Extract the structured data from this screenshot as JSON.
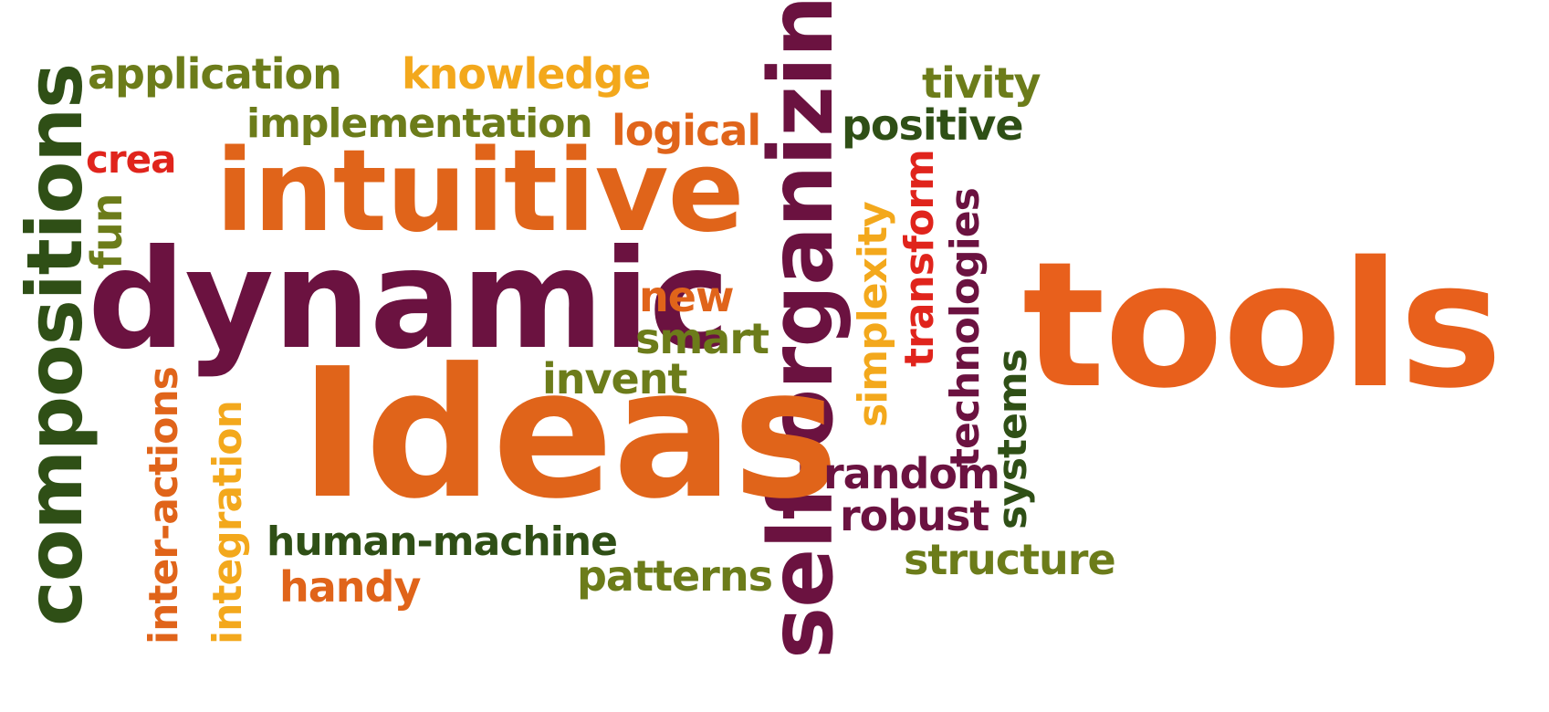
{
  "colors": {
    "orange": "#e8601c",
    "dark_orange": "#e0641a",
    "amber": "#f3a81c",
    "olive": "#6c7c1a",
    "dark_green": "#2f4f16",
    "maroon": "#6b1240",
    "red": "#e0241c"
  },
  "words": {
    "compositions": "compositions",
    "application": "application",
    "knowledge": "knowledge",
    "self_organizing": "self-organizing",
    "tivity": "tivity",
    "implementation": "implementation",
    "logical": "logical",
    "positive": "positive",
    "crea": "crea",
    "intuitive": "intuitive",
    "transform": "transform",
    "simplexity": "simplexity",
    "technologies": "technologies",
    "fun": "fun",
    "dynamic": "dynamic",
    "new": "new",
    "tools": "tools",
    "smart": "smart",
    "invent": "invent",
    "systems": "systems",
    "ideas": "Ideas",
    "inter_actions": "inter-actions",
    "integration": "integration",
    "random": "random",
    "robust": "robust",
    "human_machine": "human-machine",
    "structure": "structure",
    "handy": "handy",
    "patterns": "patterns"
  }
}
